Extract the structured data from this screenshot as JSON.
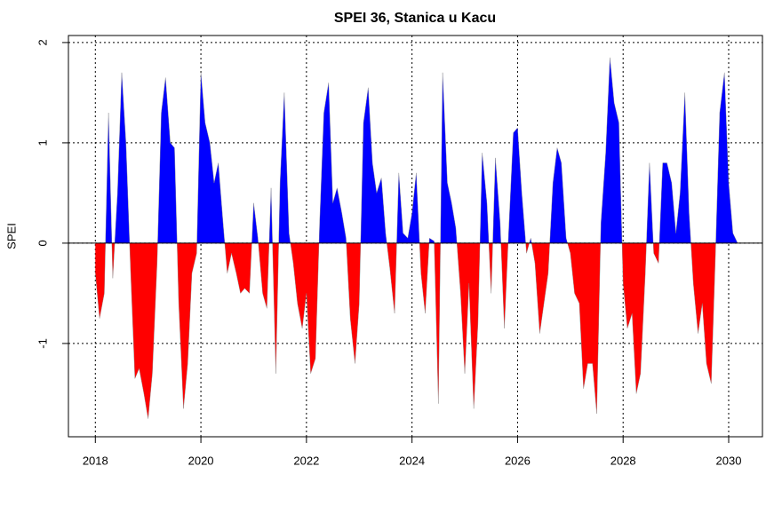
{
  "chart_data": {
    "type": "area",
    "title": "SPEI 36, Stanica u Kacu",
    "y_label": "SPEI",
    "x": [
      2018,
      2018.08,
      2018.17,
      2018.25,
      2018.33,
      2018.42,
      2018.5,
      2018.58,
      2018.67,
      2018.75,
      2018.83,
      2018.92,
      2019,
      2019.08,
      2019.17,
      2019.25,
      2019.33,
      2019.42,
      2019.5,
      2019.58,
      2019.67,
      2019.75,
      2019.83,
      2019.92,
      2020,
      2020.08,
      2020.17,
      2020.25,
      2020.33,
      2020.42,
      2020.5,
      2020.58,
      2020.67,
      2020.75,
      2020.83,
      2020.92,
      2021,
      2021.08,
      2021.17,
      2021.25,
      2021.33,
      2021.42,
      2021.5,
      2021.58,
      2021.67,
      2021.75,
      2021.83,
      2021.92,
      2022,
      2022.08,
      2022.17,
      2022.25,
      2022.33,
      2022.42,
      2022.5,
      2022.58,
      2022.67,
      2022.75,
      2022.83,
      2022.92,
      2023,
      2023.08,
      2023.17,
      2023.25,
      2023.33,
      2023.42,
      2023.5,
      2023.58,
      2023.67,
      2023.75,
      2023.83,
      2023.92,
      2024,
      2024.08,
      2024.17,
      2024.25,
      2024.33,
      2024.42,
      2024.5,
      2024.58,
      2024.67,
      2024.75,
      2024.83,
      2024.92,
      2025,
      2025.08,
      2025.17,
      2025.25,
      2025.33,
      2025.42,
      2025.5,
      2025.58,
      2025.67,
      2025.75,
      2025.83,
      2025.92,
      2026,
      2026.08,
      2026.17,
      2026.25,
      2026.33,
      2026.42,
      2026.5,
      2026.58,
      2026.67,
      2026.75,
      2026.83,
      2026.92,
      2027,
      2027.08,
      2027.17,
      2027.25,
      2027.33,
      2027.42,
      2027.5,
      2027.58,
      2027.67,
      2027.75,
      2027.83,
      2027.92,
      2028,
      2028.08,
      2028.17,
      2028.25,
      2028.33,
      2028.42,
      2028.5,
      2028.58,
      2028.67,
      2028.75,
      2028.83,
      2028.92,
      2029,
      2029.08,
      2029.17,
      2029.25,
      2029.33,
      2029.42,
      2029.5,
      2029.58,
      2029.67,
      2029.75,
      2029.83,
      2029.92,
      2030,
      2030.08,
      2030.17
    ],
    "series": [
      {
        "values": [
          -0.3,
          -0.75,
          -0.5,
          1.3,
          -0.35,
          0.5,
          1.7,
          1.0,
          -0.3,
          -1.35,
          -1.25,
          -1.5,
          -1.75,
          -1.3,
          -0.2,
          1.3,
          1.65,
          1.0,
          0.95,
          -0.6,
          -1.65,
          -1.2,
          -0.3,
          -0.1,
          1.7,
          1.2,
          1.0,
          0.6,
          0.8,
          0.2,
          -0.3,
          -0.1,
          -0.3,
          -0.5,
          -0.45,
          -0.5,
          0.4,
          0.05,
          -0.5,
          -0.65,
          0.55,
          -1.3,
          0.6,
          1.5,
          0.1,
          -0.2,
          -0.6,
          -0.85,
          -0.5,
          -1.3,
          -1.15,
          0.2,
          1.3,
          1.6,
          0.4,
          0.55,
          0.3,
          0.05,
          -0.75,
          -1.2,
          -0.6,
          1.2,
          1.55,
          0.8,
          0.5,
          0.65,
          0.1,
          -0.25,
          -0.7,
          0.7,
          0.1,
          0.05,
          0.3,
          0.7,
          -0.3,
          -0.7,
          0.05,
          0.02,
          -1.6,
          1.7,
          0.6,
          0.4,
          0.15,
          -0.5,
          -1.3,
          -0.4,
          -1.65,
          -0.8,
          0.9,
          0.4,
          -0.5,
          0.85,
          0.2,
          -0.85,
          0.1,
          1.1,
          1.15,
          0.5,
          -0.1,
          0.05,
          -0.2,
          -0.9,
          -0.6,
          -0.3,
          0.6,
          0.95,
          0.8,
          0.05,
          -0.1,
          -0.5,
          -0.6,
          -1.45,
          -1.2,
          -1.2,
          -1.7,
          0.2,
          0.9,
          1.85,
          1.4,
          1.2,
          -0.4,
          -0.85,
          -0.7,
          -1.5,
          -1.3,
          -0.3,
          0.8,
          -0.1,
          -0.2,
          0.8,
          0.8,
          0.6,
          0.1,
          0.5,
          1.5,
          0.3,
          -0.4,
          -0.9,
          -0.6,
          -1.2,
          -1.4,
          -0.1,
          1.3,
          1.7,
          0.6,
          0.1,
          0
        ]
      }
    ],
    "positive_color": "#0000ff",
    "negative_color": "#ff0000",
    "xlim": [
      2017.49,
      2030.64
    ],
    "xticks": [
      2018,
      2020,
      2022,
      2024,
      2026,
      2028,
      2030
    ],
    "ylim": [
      -1.93,
      2.07
    ],
    "yticks": [
      -1,
      0,
      1,
      2
    ],
    "grid": true
  }
}
